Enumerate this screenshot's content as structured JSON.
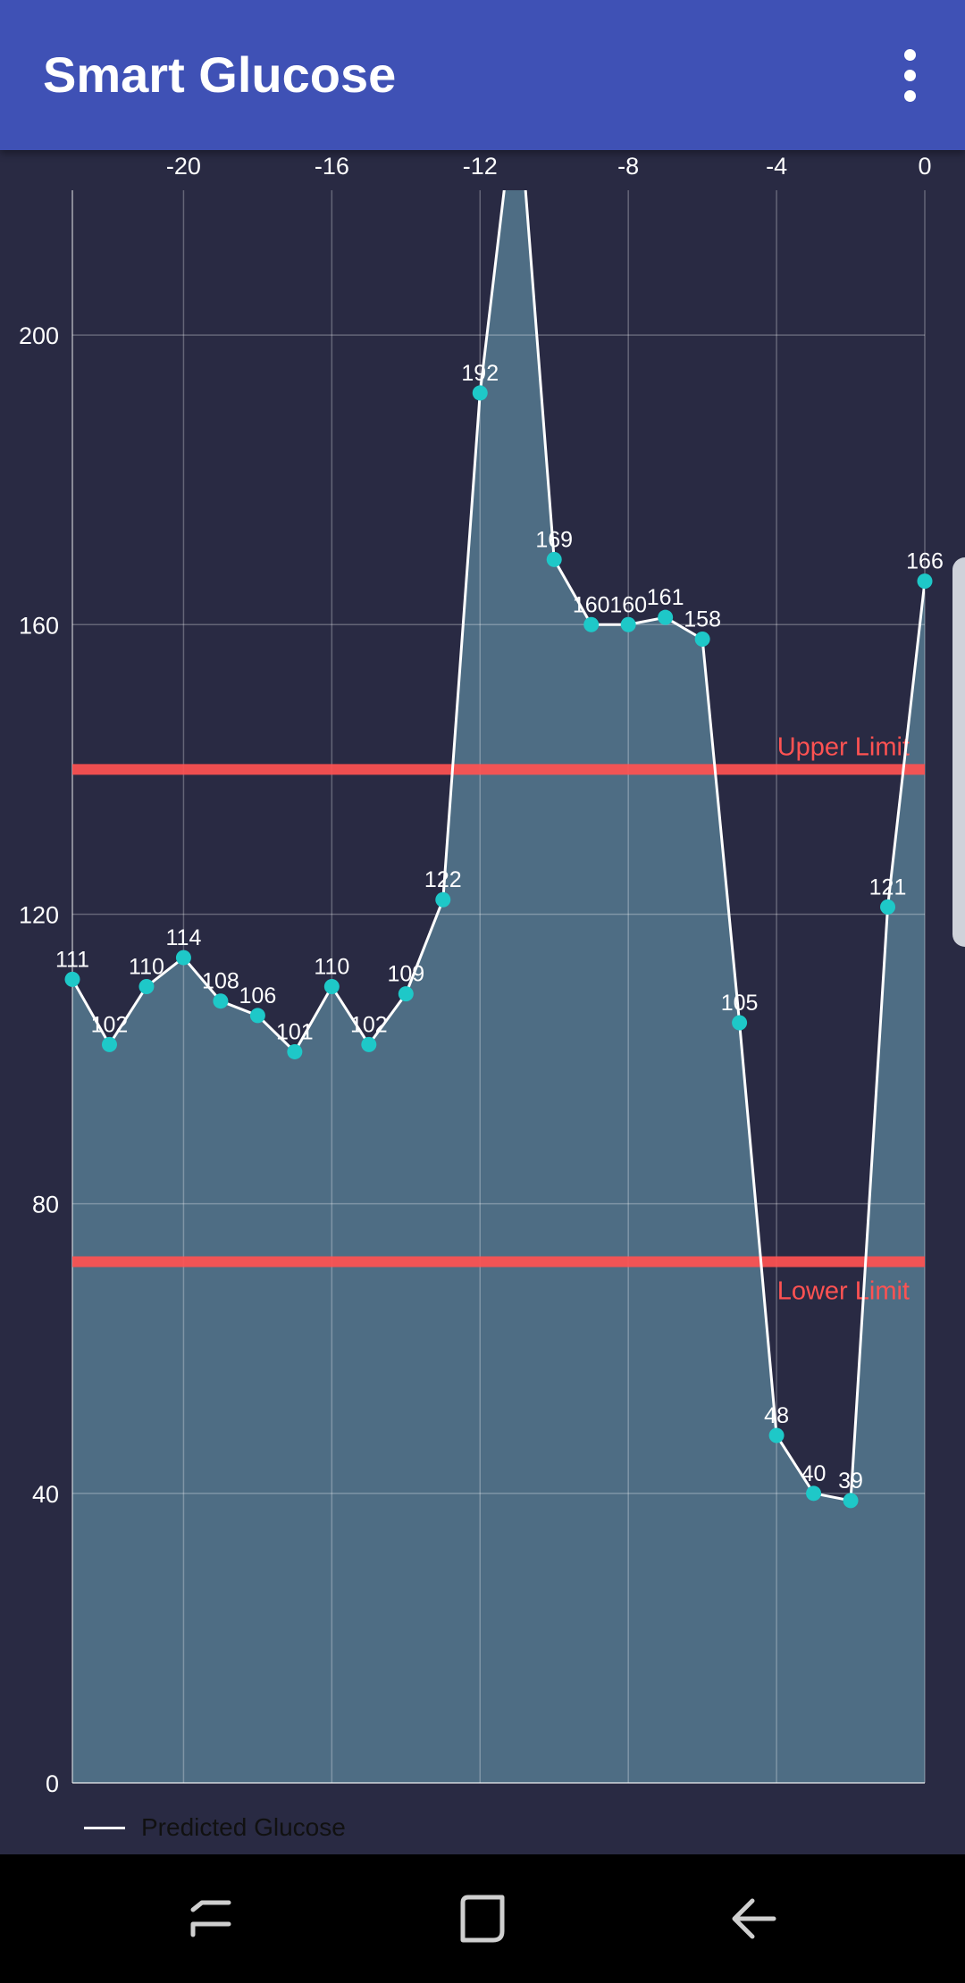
{
  "app": {
    "title": "Smart Glucose",
    "menu_icon": "more-vert-icon"
  },
  "colors": {
    "appbar": "#3f51b5",
    "background": "#292a43",
    "fill": "#4e6d84",
    "line": "#ffffff",
    "point": "#1ec8c8",
    "limit": "#ff5252"
  },
  "chart_data": {
    "type": "area",
    "x": [
      -23,
      -22,
      -21,
      -20,
      -19,
      -18,
      -17,
      -16,
      -15,
      -14,
      -13,
      -12,
      -11,
      -10,
      -9,
      -8,
      -7,
      -6,
      -5,
      -4,
      -3,
      -2,
      -1,
      0
    ],
    "series": [
      {
        "name": "Predicted Glucose",
        "values": [
          111,
          102,
          110,
          114,
          108,
          106,
          101,
          110,
          102,
          109,
          122,
          192,
          235,
          169,
          160,
          160,
          161,
          158,
          105,
          48,
          40,
          39,
          121,
          166
        ],
        "labels": [
          "111",
          "102",
          "110",
          "114",
          "108",
          "106",
          "101",
          "110",
          "102",
          "109",
          "122",
          "192",
          "",
          "169",
          "160",
          "160",
          "161",
          "158",
          "105",
          "48",
          "40",
          "39",
          "121",
          "166"
        ]
      }
    ],
    "xlim": [
      -23,
      0
    ],
    "ylim": [
      0,
      220
    ],
    "x_ticks": [
      "-20",
      "-16",
      "-12",
      "-8",
      "-4",
      "0"
    ],
    "x_tick_values": [
      -20,
      -16,
      -12,
      -8,
      -4,
      0
    ],
    "y_ticks": [
      "0",
      "40",
      "80",
      "120",
      "160",
      "200"
    ],
    "y_tick_values": [
      0,
      40,
      80,
      120,
      160,
      200
    ],
    "limits": [
      {
        "label": "Upper Limit",
        "value": 140
      },
      {
        "label": "Lower Limit",
        "value": 72
      }
    ],
    "grid": true,
    "legend": {
      "position": "bottom-left",
      "label": "Predicted Glucose"
    }
  }
}
